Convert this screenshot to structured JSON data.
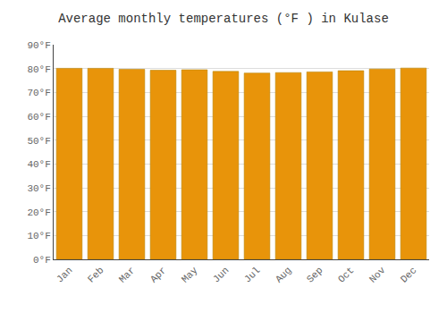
{
  "chart_data": {
    "type": "bar",
    "title": "Average monthly temperatures (°F ) in Kulase",
    "categories": [
      "Jan",
      "Feb",
      "Mar",
      "Apr",
      "May",
      "Jun",
      "Jul",
      "Aug",
      "Sep",
      "Oct",
      "Nov",
      "Dec"
    ],
    "values": [
      80.1,
      80.1,
      79.7,
      79.3,
      79.5,
      78.8,
      78.1,
      78.3,
      78.6,
      79.1,
      79.8,
      80.2
    ],
    "color": "#E8940A",
    "ylim": [
      0,
      90
    ],
    "yticks": [
      {
        "value": 0,
        "label": "0°F"
      },
      {
        "value": 10,
        "label": "10°F"
      },
      {
        "value": 20,
        "label": "20°F"
      },
      {
        "value": 30,
        "label": "30°F"
      },
      {
        "value": 40,
        "label": "40°F"
      },
      {
        "value": 50,
        "label": "50°F"
      },
      {
        "value": 60,
        "label": "60°F"
      },
      {
        "value": 70,
        "label": "70°F"
      },
      {
        "value": 80,
        "label": "80°F"
      },
      {
        "value": 90,
        "label": "90°F"
      }
    ],
    "grid": true
  }
}
